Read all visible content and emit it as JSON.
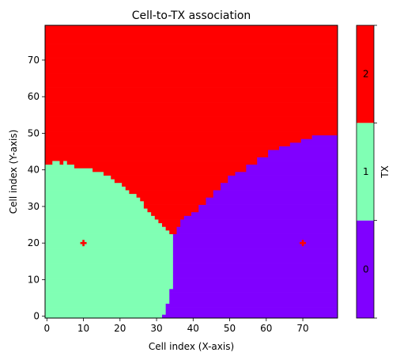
{
  "chart_data": {
    "type": "heatmap",
    "title": "Cell-to-TX association",
    "xlabel": "Cell index (X-axis)",
    "ylabel": "Cell index (Y-axis)",
    "colorbar_label": "TX",
    "xlim": [
      -0.5,
      79.5
    ],
    "ylim": [
      -0.5,
      79.5
    ],
    "x_ticks": [
      "0",
      "10",
      "20",
      "30",
      "40",
      "50",
      "60",
      "70"
    ],
    "y_ticks": [
      "0",
      "10",
      "20",
      "30",
      "40",
      "50",
      "60",
      "70"
    ],
    "grid": false,
    "grid_size": [
      80,
      80
    ],
    "classes": [
      {
        "label": "0",
        "color": "#8000ff"
      },
      {
        "label": "1",
        "color": "#80ffb4"
      },
      {
        "label": "2",
        "color": "#ff0000"
      }
    ],
    "transmitters": [
      {
        "x": 10,
        "y": 20,
        "color": "#ff0000"
      },
      {
        "x": 70,
        "y": 20,
        "color": "#ff0000"
      }
    ],
    "region_boundaries": {
      "green_top_by_x": [
        [
          0,
          41
        ],
        [
          1,
          41
        ],
        [
          2,
          42
        ],
        [
          3,
          42
        ],
        [
          4,
          41
        ],
        [
          5,
          42
        ],
        [
          6,
          41
        ],
        [
          7,
          41
        ],
        [
          8,
          40
        ],
        [
          12,
          40
        ],
        [
          13,
          39
        ],
        [
          15,
          39
        ],
        [
          16,
          38
        ],
        [
          18,
          37
        ],
        [
          19,
          36
        ],
        [
          21,
          35
        ],
        [
          22,
          34
        ],
        [
          23,
          33
        ],
        [
          25,
          32
        ],
        [
          26,
          31
        ],
        [
          27,
          30
        ],
        [
          28,
          29
        ],
        [
          29,
          28
        ],
        [
          30,
          27
        ],
        [
          31,
          26
        ],
        [
          32,
          25
        ],
        [
          33,
          24
        ],
        [
          34,
          23
        ],
        [
          35,
          22
        ]
      ],
      "green_right_by_y": [
        [
          0,
          31
        ],
        [
          1,
          32
        ],
        [
          4,
          33
        ],
        [
          8,
          34
        ],
        [
          22,
          34
        ],
        [
          23,
          33
        ],
        [
          24,
          32
        ],
        [
          25,
          31
        ],
        [
          26,
          30
        ],
        [
          27,
          29
        ],
        [
          28,
          28
        ],
        [
          29,
          27
        ],
        [
          30,
          26
        ]
      ],
      "purple_top_by_x": [
        [
          35,
          22
        ],
        [
          36,
          24
        ],
        [
          37,
          26
        ],
        [
          38,
          27
        ],
        [
          40,
          28
        ],
        [
          42,
          30
        ],
        [
          44,
          32
        ],
        [
          46,
          34
        ],
        [
          48,
          36
        ],
        [
          50,
          38
        ],
        [
          52,
          39
        ],
        [
          55,
          41
        ],
        [
          58,
          43
        ],
        [
          61,
          45
        ],
        [
          64,
          46
        ],
        [
          67,
          47
        ],
        [
          70,
          48
        ],
        [
          73,
          49
        ],
        [
          76,
          49
        ],
        [
          79,
          49
        ]
      ]
    }
  }
}
